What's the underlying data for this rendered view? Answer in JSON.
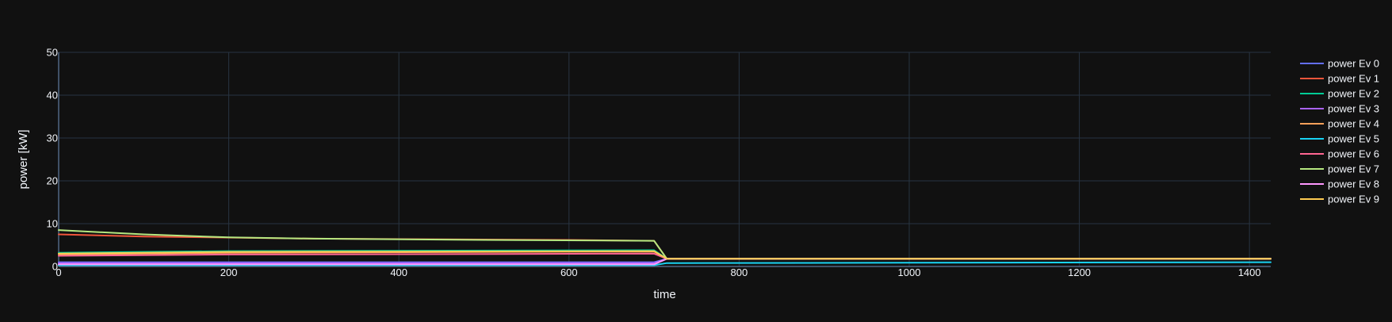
{
  "chart_data": {
    "type": "line",
    "title": "",
    "xlabel": "time",
    "ylabel": "power [kW]",
    "xlim": [
      0,
      1425
    ],
    "ylim": [
      0,
      50
    ],
    "x_ticks": [
      0,
      200,
      400,
      600,
      800,
      1000,
      1200,
      1400
    ],
    "y_ticks": [
      0,
      10,
      20,
      30,
      40,
      50
    ],
    "grid": true,
    "legend_position": "top-right",
    "series": [
      {
        "name": "power Ev 0",
        "color": "#636efa",
        "points": [
          [
            0,
            1.0
          ],
          [
            700,
            1.0
          ],
          [
            715,
            1.8
          ],
          [
            1425,
            1.8
          ]
        ]
      },
      {
        "name": "power Ev 1",
        "color": "#EF553B",
        "points": [
          [
            0,
            7.5
          ],
          [
            100,
            7.0
          ],
          [
            300,
            6.5
          ],
          [
            600,
            6.2
          ],
          [
            700,
            6.0
          ],
          [
            715,
            1.8
          ],
          [
            1425,
            1.8
          ]
        ]
      },
      {
        "name": "power Ev 2",
        "color": "#00cc96",
        "points": [
          [
            0,
            3.2
          ],
          [
            200,
            3.6
          ],
          [
            700,
            3.8
          ],
          [
            715,
            1.8
          ],
          [
            1425,
            1.8
          ]
        ]
      },
      {
        "name": "power Ev 3",
        "color": "#ab63fa",
        "points": [
          [
            0,
            0.8
          ],
          [
            700,
            0.8
          ],
          [
            715,
            1.8
          ],
          [
            1425,
            1.8
          ]
        ]
      },
      {
        "name": "power Ev 4",
        "color": "#FFA15A",
        "points": [
          [
            0,
            2.8
          ],
          [
            200,
            3.2
          ],
          [
            700,
            3.5
          ],
          [
            715,
            1.8
          ],
          [
            1425,
            1.8
          ]
        ]
      },
      {
        "name": "power Ev 5",
        "color": "#19d3f3",
        "points": [
          [
            0,
            0.3
          ],
          [
            700,
            0.3
          ],
          [
            715,
            0.8
          ],
          [
            1425,
            1.0
          ]
        ]
      },
      {
        "name": "power Ev 6",
        "color": "#FF6692",
        "points": [
          [
            0,
            2.5
          ],
          [
            200,
            2.8
          ],
          [
            700,
            3.0
          ],
          [
            715,
            1.8
          ],
          [
            1425,
            1.8
          ]
        ]
      },
      {
        "name": "power Ev 7",
        "color": "#B6E880",
        "points": [
          [
            0,
            8.5
          ],
          [
            100,
            7.5
          ],
          [
            200,
            6.8
          ],
          [
            300,
            6.5
          ],
          [
            500,
            6.2
          ],
          [
            700,
            6.0
          ],
          [
            715,
            1.8
          ],
          [
            1425,
            1.8
          ]
        ]
      },
      {
        "name": "power Ev 8",
        "color": "#FF97FF",
        "points": [
          [
            0,
            0.5
          ],
          [
            700,
            0.5
          ],
          [
            715,
            1.8
          ],
          [
            1425,
            1.8
          ]
        ]
      },
      {
        "name": "power Ev 9",
        "color": "#FECB52",
        "points": [
          [
            0,
            3.0
          ],
          [
            200,
            3.4
          ],
          [
            700,
            3.6
          ],
          [
            715,
            1.8
          ],
          [
            1425,
            1.8
          ]
        ]
      }
    ]
  }
}
